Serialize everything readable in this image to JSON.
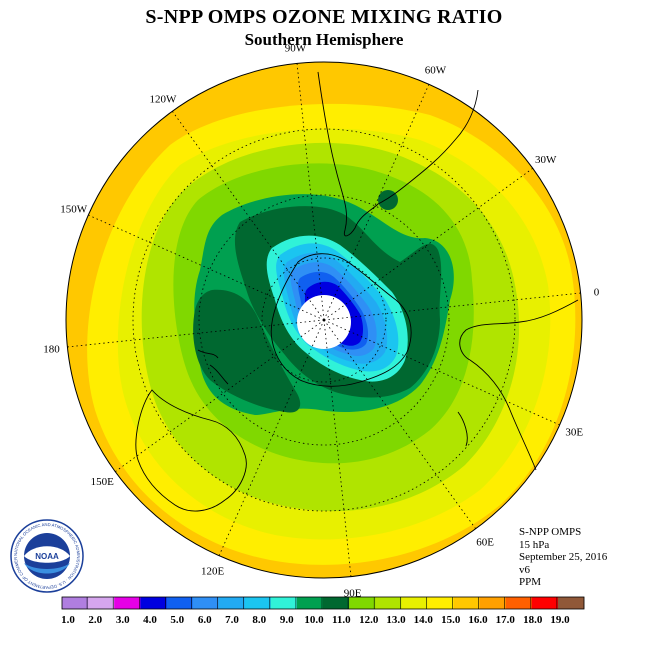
{
  "title": "S-NPP OMPS OZONE MIXING RATIO",
  "subtitle": "Southern Hemisphere",
  "longitude_labels": [
    {
      "text": "90W",
      "lon": -90
    },
    {
      "text": "60W",
      "lon": -60
    },
    {
      "text": "30W",
      "lon": -30
    },
    {
      "text": "0",
      "lon": 0
    },
    {
      "text": "30E",
      "lon": 30
    },
    {
      "text": "60E",
      "lon": 60
    },
    {
      "text": "90E",
      "lon": 90
    },
    {
      "text": "120E",
      "lon": 120
    },
    {
      "text": "150E",
      "lon": 150
    },
    {
      "text": "180",
      "lon": 180
    },
    {
      "text": "150W",
      "lon": -150
    },
    {
      "text": "120W",
      "lon": -120
    }
  ],
  "info": {
    "instrument": "S-NPP OMPS",
    "level": "15 hPa",
    "date": "September 25, 2016",
    "version": "v6",
    "units": "PPM"
  },
  "logo": {
    "text": "NOAA",
    "ring_text": "NATIONAL OCEANIC AND ATMOSPHERIC ADMINISTRATION · U.S. DEPARTMENT OF COMMERCE"
  },
  "colorbar": {
    "ticks": [
      "1.0",
      "2.0",
      "3.0",
      "4.0",
      "5.0",
      "6.0",
      "7.0",
      "8.0",
      "9.0",
      "10.0",
      "11.0",
      "12.0",
      "13.0",
      "14.0",
      "15.0",
      "16.0",
      "17.0",
      "18.0",
      "19.0"
    ],
    "colors": [
      "#b07ee0",
      "#d6a6ee",
      "#e600e6",
      "#0000e0",
      "#1060f0",
      "#2f8ff5",
      "#22aaf2",
      "#1bc5f0",
      "#30f2d8",
      "#00a050",
      "#006830",
      "#80d800",
      "#b0e400",
      "#e8f000",
      "#ffee00",
      "#ffc800",
      "#ffa000",
      "#ff6000",
      "#ff0000",
      "#905838"
    ]
  },
  "field_colors": {
    "outer": "#ffc800",
    "ring14": "#ffee00",
    "ring13": "#e8f000",
    "ring12": "#b0e400",
    "ring11": "#80d800",
    "green10": "#00a050",
    "dark": "#006830",
    "cyan": "#30f2d8",
    "lightblue": "#1bc5f0",
    "blue7": "#22aaf2",
    "blue6": "#2f8ff5",
    "blue5": "#1060f0",
    "navy": "#0000e0"
  }
}
